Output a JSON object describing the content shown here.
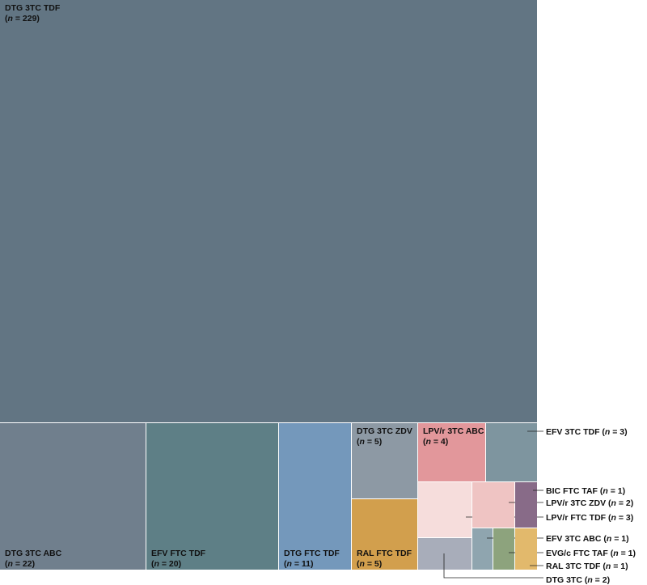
{
  "chart_data": {
    "type": "treemap",
    "n_prefix": "n",
    "regimens": [
      {
        "label": "DTG 3TC TDF",
        "n": 229,
        "color": "#627583"
      },
      {
        "label": "DTG 3TC ABC",
        "n": 22,
        "color": "#707f8d"
      },
      {
        "label": "EFV FTC TDF",
        "n": 20,
        "color": "#5e7f86"
      },
      {
        "label": "DTG FTC TDF",
        "n": 11,
        "color": "#7498bb"
      },
      {
        "label": "DTG 3TC ZDV",
        "n": 5,
        "color": "#8d99a4"
      },
      {
        "label": "RAL FTC TDF",
        "n": 5,
        "color": "#d29f4d"
      },
      {
        "label": "LPV/r 3TC ABC",
        "n": 4,
        "color": "#e2979b"
      },
      {
        "label": "EFV 3TC TDF",
        "n": 3,
        "color": "#7e959f"
      },
      {
        "label": "LPV/r FTC TDF",
        "n": 3,
        "color": "#f6dddc"
      },
      {
        "label": "LPV/r 3TC ZDV",
        "n": 2,
        "color": "#efc4c3"
      },
      {
        "label": "DTG 3TC",
        "n": 2,
        "color": "#a8adba"
      },
      {
        "label": "BIC FTC TAF",
        "n": 1,
        "color": "#886b88"
      },
      {
        "label": "EFV 3TC ABC",
        "n": 1,
        "color": "#8fa5af"
      },
      {
        "label": "EVG/c FTC TAF",
        "n": 1,
        "color": "#8da37d"
      },
      {
        "label": "RAL 3TC TDF",
        "n": 1,
        "color": "#e2b96c"
      }
    ]
  }
}
